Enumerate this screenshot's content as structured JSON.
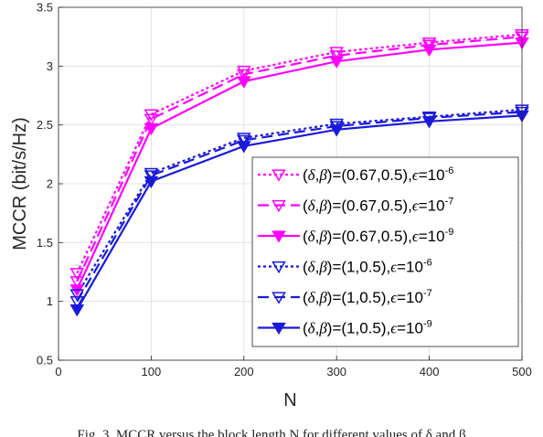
{
  "chart_data": {
    "type": "line",
    "title": "",
    "xlabel": "N",
    "ylabel": "MCCR (bit/s/Hz)",
    "xlim": [
      0,
      500
    ],
    "ylim": [
      0.5,
      3.5
    ],
    "xticks": [
      0,
      100,
      200,
      300,
      400,
      500
    ],
    "yticks": [
      0.5,
      1,
      1.5,
      2,
      2.5,
      3,
      3.5
    ],
    "xtick_labels": [
      "0",
      "100",
      "200",
      "300",
      "400",
      "500"
    ],
    "ytick_labels": [
      "0.5",
      "1",
      "1.5",
      "2",
      "2.5",
      "3",
      "3.5"
    ],
    "grid": true,
    "legend_position": "lower-right",
    "x": [
      20,
      100,
      200,
      300,
      400,
      500
    ],
    "series": [
      {
        "name": "(δ,β)=(0.67,0.5),ϵ=10^-6",
        "delta": "0.67",
        "beta": "0.5",
        "exp": "-6",
        "color": "#ff00ff",
        "dash": "3,3",
        "marker": "hollow",
        "values": [
          1.24,
          2.59,
          2.96,
          3.12,
          3.2,
          3.27
        ]
      },
      {
        "name": "(δ,β)=(0.67,0.5),ϵ=10^-7",
        "delta": "0.67",
        "beta": "0.5",
        "exp": "-7",
        "color": "#ff00ff",
        "dash": "12,6",
        "marker": "hollow",
        "values": [
          1.17,
          2.55,
          2.93,
          3.09,
          3.18,
          3.25
        ]
      },
      {
        "name": "(δ,β)=(0.67,0.5),ϵ=10^-9",
        "delta": "0.67",
        "beta": "0.5",
        "exp": "-9",
        "color": "#ff00ff",
        "dash": "",
        "marker": "filled",
        "values": [
          1.1,
          2.47,
          2.87,
          3.04,
          3.14,
          3.2
        ]
      },
      {
        "name": "(δ,β)=(1,0.5),ϵ=10^-6",
        "delta": "1",
        "beta": "0.5",
        "exp": "-6",
        "color": "#1a1adb",
        "dash": "3,3",
        "marker": "hollow",
        "values": [
          1.06,
          2.09,
          2.39,
          2.51,
          2.57,
          2.63
        ]
      },
      {
        "name": "(δ,β)=(1,0.5),ϵ=10^-7",
        "delta": "1",
        "beta": "0.5",
        "exp": "-7",
        "color": "#1a1adb",
        "dash": "12,6",
        "marker": "hollow",
        "values": [
          1.0,
          2.07,
          2.37,
          2.49,
          2.56,
          2.61
        ]
      },
      {
        "name": "(δ,β)=(1,0.5),ϵ=10^-9",
        "delta": "1",
        "beta": "0.5",
        "exp": "-9",
        "color": "#1a1adb",
        "dash": "",
        "marker": "filled",
        "values": [
          0.93,
          2.02,
          2.32,
          2.46,
          2.53,
          2.58
        ]
      }
    ]
  },
  "caption": "Fig. 3.  MCCR versus the block length N for different values of δ and β"
}
